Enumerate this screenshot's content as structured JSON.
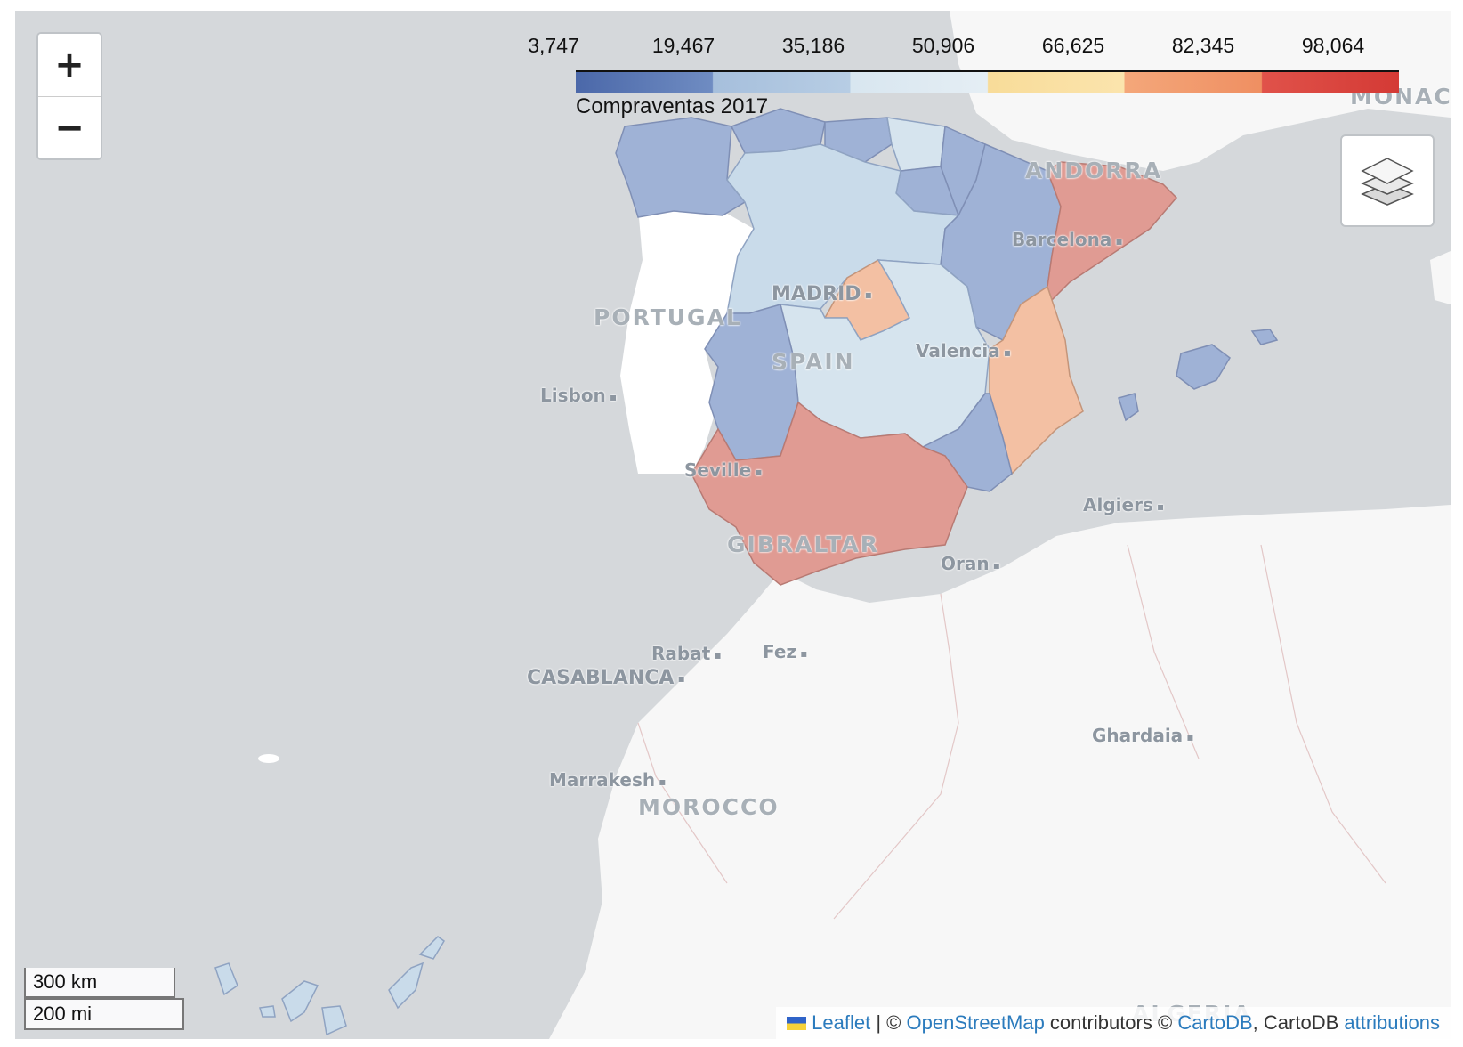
{
  "map": {
    "legend": {
      "ticks": [
        "3,747",
        "19,467",
        "35,186",
        "50,906",
        "66,625",
        "82,345",
        "98,064"
      ],
      "caption": "Compraventas 2017"
    },
    "zoom": {
      "in_label": "+",
      "out_label": "−"
    },
    "labels": {
      "countries": {
        "portugal": "PORTUGAL",
        "spain": "SPAIN",
        "andorra": "ANDORRA",
        "monaco": "MONACO",
        "gibraltar": "GIBRALTAR",
        "morocco": "MOROCCO",
        "algeria": "ALGERIA"
      },
      "cities": {
        "madrid": "MADRID",
        "barcelona": "Barcelona",
        "valencia": "Valencia",
        "lisbon": "Lisbon",
        "seville": "Seville",
        "algiers": "Algiers",
        "oran": "Oran",
        "rabat": "Rabat",
        "fez": "Fez",
        "casablanca": "CASABLANCA",
        "ghardaia": "Ghardaia",
        "marrakesh": "Marrakesh"
      }
    },
    "scale": {
      "km": "300 km",
      "mi": "200 mi"
    },
    "attribution": {
      "leaflet": "Leaflet",
      "sep1": " | © ",
      "osm": "OpenStreetMap",
      "contributors": " contributors © ",
      "cartodb": "CartoDB",
      "comma": ", CartoDB ",
      "attributions": "attributions"
    },
    "colors": {
      "water": "#d5d8db",
      "land": "#f7f7f7",
      "dark_blue": "#9fb2d6",
      "light_blue": "#c9dbea",
      "lighter_blue": "#d6e4ee",
      "peach": "#f3c0a3",
      "red": "#e09b93"
    }
  }
}
